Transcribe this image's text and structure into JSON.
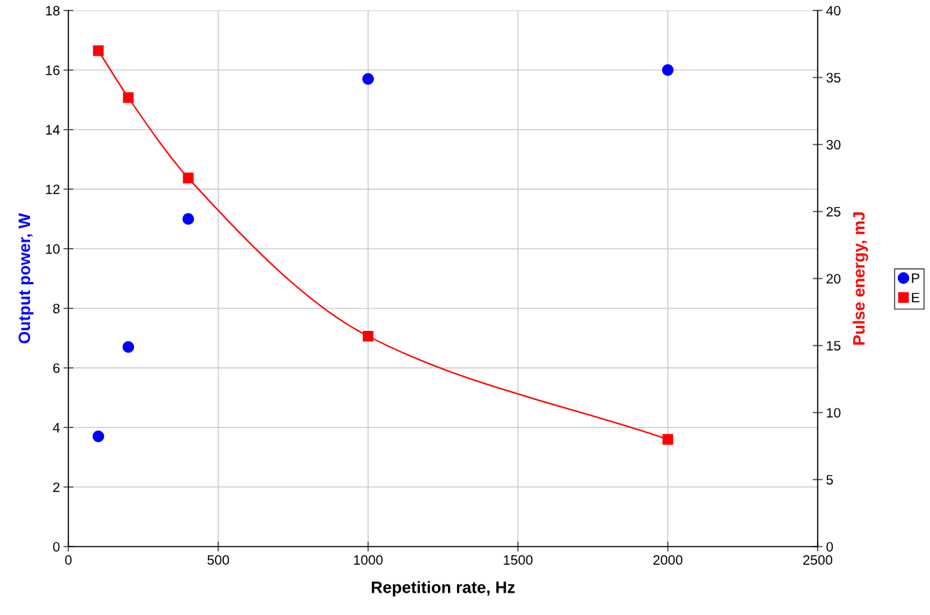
{
  "chart_data": {
    "type": "scatter",
    "xlabel": "Repetition rate, Hz",
    "ylabel": "Output power, W",
    "y2label": "Pulse energy, mJ",
    "x": [
      100,
      200,
      400,
      1000,
      2000
    ],
    "series": [
      {
        "name": "P",
        "color": "#0000ff",
        "values": [
          3.7,
          6.7,
          11.0,
          15.7,
          16.0
        ],
        "marker": "circle"
      },
      {
        "name": "E",
        "color": "#ff0000",
        "values": [
          37.0,
          33.5,
          27.5,
          15.7,
          8.0
        ],
        "type": "line",
        "marker": "square",
        "line_style": "solid",
        "axis": "y2"
      }
    ],
    "xlim": [
      0,
      2500
    ],
    "xticks": [
      0,
      500,
      1000,
      1500,
      2000,
      2500
    ],
    "ylim": [
      0,
      18
    ],
    "yticks": [
      0,
      2,
      4,
      6,
      8,
      10,
      12,
      14,
      16,
      18
    ],
    "y2lim": [
      0,
      40
    ],
    "y2ticks": [
      0,
      5,
      10,
      15,
      20,
      25,
      30,
      35,
      40
    ],
    "grid": true,
    "legend": "right"
  }
}
